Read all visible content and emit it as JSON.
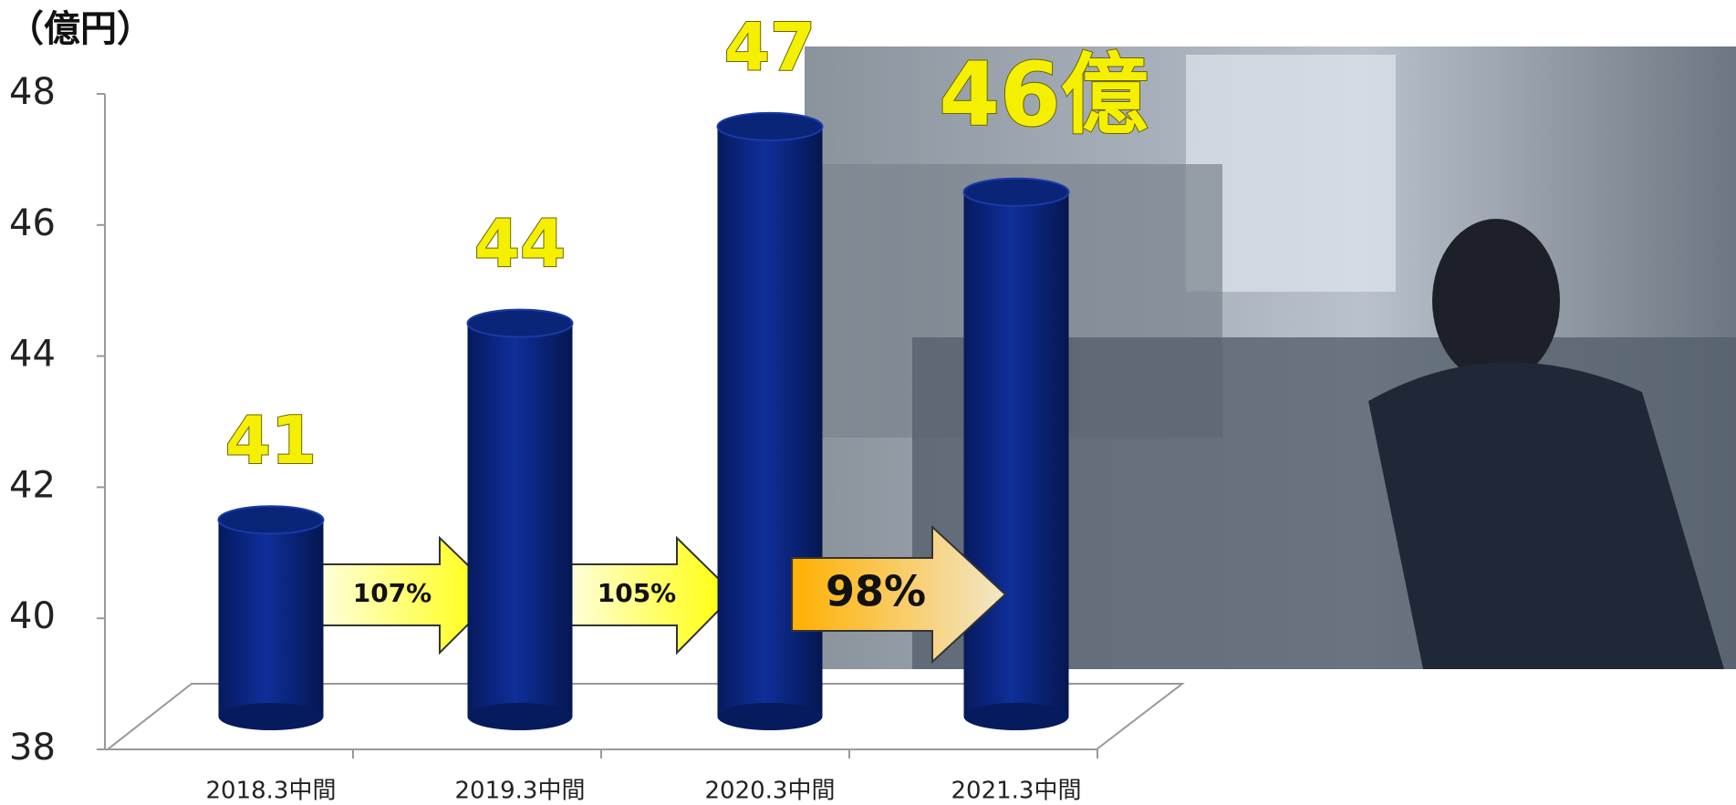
{
  "chart_data": {
    "type": "bar",
    "y_label": "（億円）",
    "categories": [
      "2018.3中間",
      "2019.3中間",
      "2020.3中間",
      "2021.3中間"
    ],
    "values": [
      41,
      44,
      47,
      46
    ],
    "value_labels": [
      "41",
      "44",
      "47",
      "46億"
    ],
    "color": "#0f2f9a",
    "ylim": [
      38,
      48
    ],
    "yticks": [
      38,
      40,
      42,
      44,
      46,
      48
    ],
    "annotations": [
      "107%",
      "105%",
      "98%"
    ]
  }
}
